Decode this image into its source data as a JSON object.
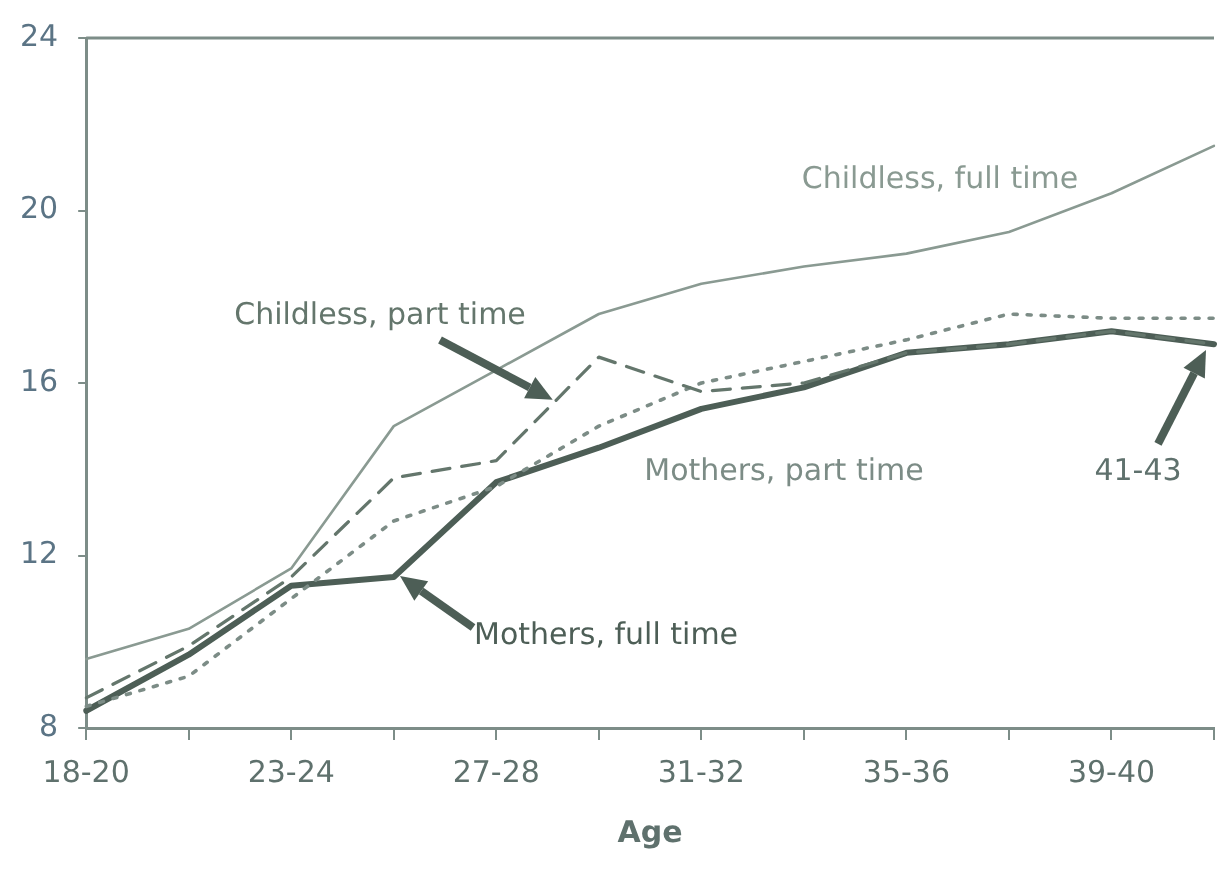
{
  "chart_data": {
    "type": "line",
    "xlabel": "Age",
    "categories": [
      "18-20",
      null,
      "23-24",
      null,
      "27-28",
      null,
      "31-32",
      null,
      "35-36",
      null,
      "39-40",
      null
    ],
    "ylim": [
      8,
      24
    ],
    "yticks": [
      8,
      12,
      16,
      20,
      24
    ],
    "grid": false,
    "legend": false,
    "marker": "none",
    "series": [
      {
        "name": "Childless, full time",
        "color": "#8a9a92",
        "line_style": "solid",
        "values": [
          9.6,
          10.3,
          11.7,
          15.0,
          16.3,
          17.6,
          18.3,
          18.7,
          19.0,
          19.5,
          20.4,
          21.5
        ]
      },
      {
        "name": "Childless, part time",
        "color": "#64766c",
        "line_style": "dashed",
        "values": [
          8.7,
          9.9,
          11.5,
          13.8,
          14.2,
          16.6,
          15.8,
          16.0,
          16.7,
          16.9,
          17.2,
          16.9
        ]
      },
      {
        "name": "Mothers, part time",
        "color": "#7c8c86",
        "line_style": "dotted",
        "values": [
          8.5,
          9.2,
          11.0,
          12.8,
          13.6,
          15.0,
          16.0,
          16.5,
          17.0,
          17.6,
          17.5,
          17.5
        ]
      },
      {
        "name": "Mothers, full time",
        "color": "#4d5e56",
        "line_style": "solid",
        "values": [
          8.4,
          9.7,
          11.3,
          11.5,
          13.7,
          14.5,
          15.4,
          15.9,
          16.7,
          16.9,
          17.2,
          16.9
        ]
      }
    ],
    "annotations": [
      "41-43"
    ]
  }
}
